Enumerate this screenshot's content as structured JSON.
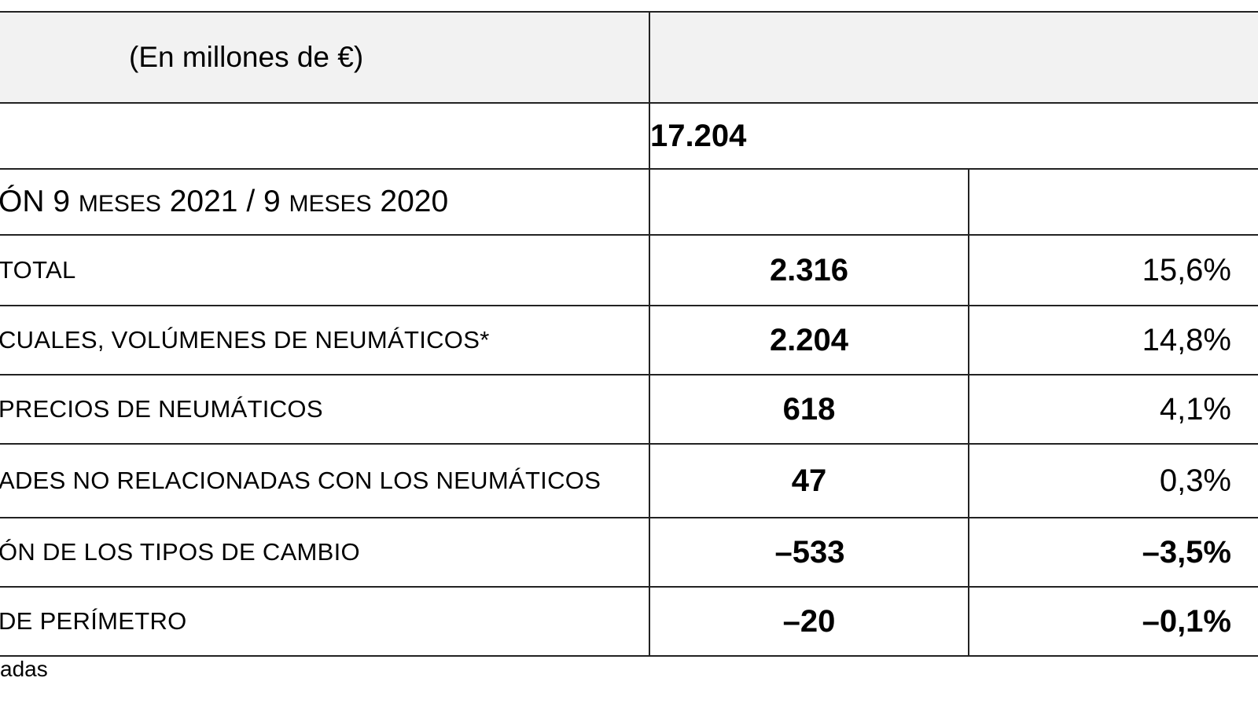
{
  "table": {
    "header": {
      "caption": "(En millones de €)",
      "right": ""
    },
    "total_row": {
      "label": "",
      "value": "17.204"
    },
    "variation_row": {
      "label_part1": "ÓN 9 ",
      "label_sc1": "MESES",
      "label_part2": " 2021 / 9 ",
      "label_sc2": "MESES",
      "label_part3": " 2020"
    },
    "rows": [
      {
        "label": "TOTAL",
        "value": "2.316",
        "pct": "15,6%",
        "pct_bold": false
      },
      {
        "label": "CUALES, VOLÚMENES DE NEUMÁTICOS*",
        "value": "2.204",
        "pct": "14,8%",
        "pct_bold": false
      },
      {
        "label": "PRECIOS DE NEUMÁTICOS",
        "value": "618",
        "pct": "4,1%",
        "pct_bold": false
      },
      {
        "label": "ADES NO RELACIONADAS CON LOS NEUMÁTICOS",
        "value": "47",
        "pct": "0,3%",
        "pct_bold": false
      },
      {
        "label": "ÓN DE LOS TIPOS DE CAMBIO",
        "value": "–533",
        "pct": "–3,5%",
        "pct_bold": true
      },
      {
        "label": "DE PERÍMETRO",
        "value": "–20",
        "pct": "–0,1%",
        "pct_bold": true
      }
    ]
  },
  "footnote": "adas"
}
